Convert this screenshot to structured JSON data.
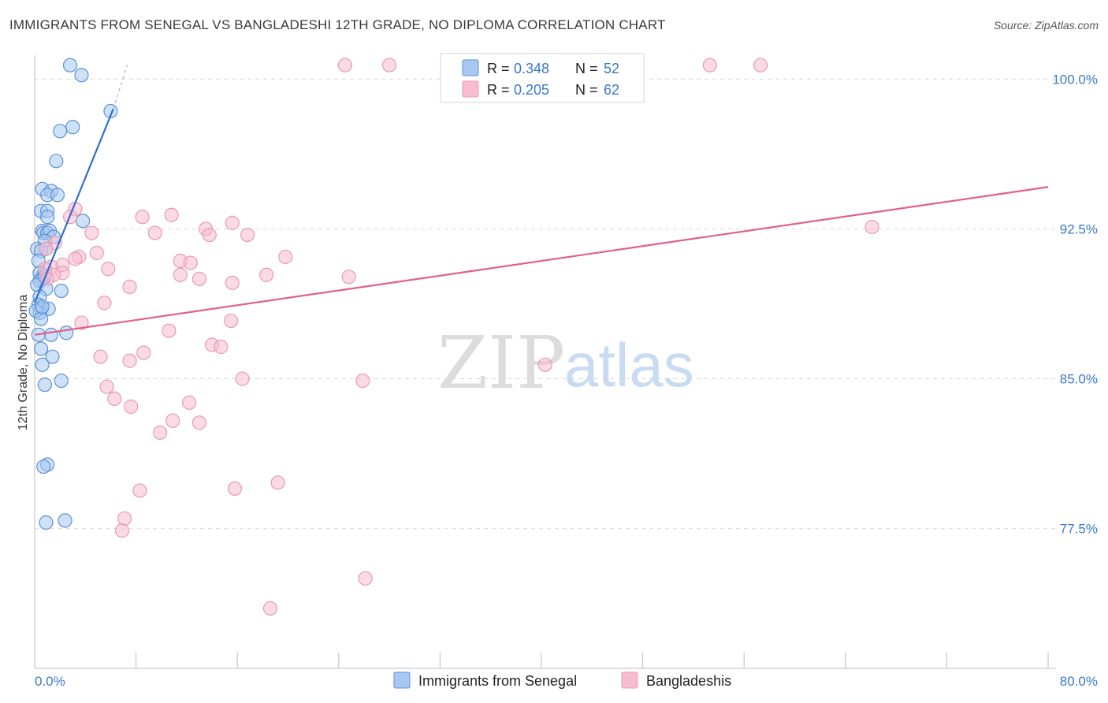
{
  "title": "IMMIGRANTS FROM SENEGAL VS BANGLADESHI 12TH GRADE, NO DIPLOMA CORRELATION CHART",
  "source": "Source: ZipAtlas.com",
  "watermark": {
    "zip": "ZIP",
    "atlas": "atlas"
  },
  "colors": {
    "blue_fill": "#a8c8f0",
    "blue_stroke": "#5b92d8",
    "blue_line": "#2f6fcf",
    "pink_fill": "#f7bcd0",
    "pink_stroke": "#e89ab4",
    "pink_line": "#e0608b",
    "grid": "#d9d9d9",
    "tick_text": "#3b78c9"
  },
  "legend": {
    "series1": {
      "r_label": "R =",
      "r_value": "0.348",
      "n_label": "N =",
      "n_value": "52"
    },
    "series2": {
      "r_label": "R =",
      "r_value": "0.205",
      "n_label": "N =",
      "n_value": "62"
    }
  },
  "chart_data": {
    "type": "scatter",
    "title": "IMMIGRANTS FROM SENEGAL VS BANGLADESHI 12TH GRADE, NO DIPLOMA CORRELATION CHART",
    "xlabel": "",
    "ylabel": "12th Grade, No Diploma",
    "xlim": [
      0,
      80
    ],
    "ylim": [
      70.5,
      101.2
    ],
    "x_tick_labels": [
      "0.0%",
      "80.0%"
    ],
    "y_ticks": [
      100.0,
      92.5,
      85.0,
      77.5
    ],
    "y_tick_labels": [
      "100.0%",
      "92.5%",
      "85.0%",
      "77.5%"
    ],
    "x_minor_ticks": [
      0,
      8,
      16,
      24,
      32,
      40,
      48,
      56,
      64,
      72,
      80
    ],
    "series": [
      {
        "name": "Immigrants from Senegal",
        "color": "blue",
        "trend": {
          "x0": 0.0,
          "y0": 88.8,
          "x1": 6.2,
          "y1": 98.5,
          "dash_x1": 7.3,
          "dash_y1": 100.7
        },
        "points": [
          [
            2.8,
            100.7
          ],
          [
            3.7,
            100.2
          ],
          [
            6.0,
            98.4
          ],
          [
            2.0,
            97.4
          ],
          [
            3.0,
            97.6
          ],
          [
            1.7,
            95.9
          ],
          [
            0.6,
            94.5
          ],
          [
            1.3,
            94.4
          ],
          [
            1.0,
            94.2
          ],
          [
            1.8,
            94.2
          ],
          [
            0.5,
            93.4
          ],
          [
            1.0,
            93.4
          ],
          [
            1.0,
            93.1
          ],
          [
            3.8,
            92.9
          ],
          [
            0.6,
            92.4
          ],
          [
            0.7,
            92.3
          ],
          [
            1.0,
            92.3
          ],
          [
            1.2,
            92.4
          ],
          [
            1.5,
            92.1
          ],
          [
            0.8,
            91.9
          ],
          [
            0.2,
            91.5
          ],
          [
            0.5,
            91.4
          ],
          [
            0.9,
            91.5
          ],
          [
            0.3,
            90.9
          ],
          [
            0.4,
            90.3
          ],
          [
            0.6,
            90.0
          ],
          [
            0.7,
            90.2
          ],
          [
            0.4,
            89.9
          ],
          [
            0.2,
            89.7
          ],
          [
            2.1,
            89.4
          ],
          [
            0.9,
            89.5
          ],
          [
            0.4,
            89.1
          ],
          [
            0.3,
            88.7
          ],
          [
            0.5,
            88.5
          ],
          [
            1.1,
            88.5
          ],
          [
            0.4,
            88.3
          ],
          [
            0.1,
            88.4
          ],
          [
            0.5,
            88.0
          ],
          [
            2.5,
            87.3
          ],
          [
            1.3,
            87.2
          ],
          [
            0.3,
            87.2
          ],
          [
            0.5,
            86.5
          ],
          [
            1.4,
            86.1
          ],
          [
            0.6,
            85.7
          ],
          [
            2.1,
            84.9
          ],
          [
            0.8,
            84.7
          ],
          [
            1.0,
            80.7
          ],
          [
            0.7,
            80.6
          ],
          [
            2.4,
            77.9
          ],
          [
            0.9,
            77.8
          ],
          [
            0.8,
            90.1
          ],
          [
            0.6,
            88.6
          ]
        ]
      },
      {
        "name": "Bangladeshis",
        "color": "pink",
        "trend": {
          "x0": 0.0,
          "y0": 87.2,
          "x1": 80.0,
          "y1": 94.6
        },
        "points": [
          [
            24.5,
            100.7
          ],
          [
            28.0,
            100.7
          ],
          [
            53.3,
            100.7
          ],
          [
            57.3,
            100.7
          ],
          [
            3.2,
            93.5
          ],
          [
            2.8,
            93.1
          ],
          [
            8.5,
            93.1
          ],
          [
            10.8,
            93.2
          ],
          [
            9.5,
            92.3
          ],
          [
            13.5,
            92.5
          ],
          [
            15.6,
            92.8
          ],
          [
            16.8,
            92.2
          ],
          [
            13.8,
            92.2
          ],
          [
            4.5,
            92.3
          ],
          [
            1.6,
            91.8
          ],
          [
            0.9,
            91.5
          ],
          [
            4.9,
            91.3
          ],
          [
            3.5,
            91.1
          ],
          [
            11.5,
            90.9
          ],
          [
            12.3,
            90.8
          ],
          [
            19.8,
            91.1
          ],
          [
            2.2,
            90.7
          ],
          [
            1.3,
            90.6
          ],
          [
            5.8,
            90.5
          ],
          [
            2.2,
            90.3
          ],
          [
            1.5,
            90.2
          ],
          [
            11.5,
            90.2
          ],
          [
            13.0,
            90.0
          ],
          [
            18.3,
            90.2
          ],
          [
            24.8,
            90.1
          ],
          [
            15.6,
            89.8
          ],
          [
            7.5,
            89.6
          ],
          [
            5.5,
            88.8
          ],
          [
            0.8,
            90.5
          ],
          [
            3.7,
            87.8
          ],
          [
            15.5,
            87.9
          ],
          [
            10.6,
            87.4
          ],
          [
            14.0,
            86.7
          ],
          [
            14.7,
            86.6
          ],
          [
            8.6,
            86.3
          ],
          [
            5.2,
            86.1
          ],
          [
            7.5,
            85.9
          ],
          [
            40.3,
            85.7
          ],
          [
            16.4,
            85.0
          ],
          [
            25.9,
            84.9
          ],
          [
            5.7,
            84.6
          ],
          [
            6.3,
            84.0
          ],
          [
            12.2,
            83.8
          ],
          [
            7.6,
            83.6
          ],
          [
            10.9,
            82.9
          ],
          [
            13.0,
            82.8
          ],
          [
            9.9,
            82.3
          ],
          [
            66.1,
            92.6
          ],
          [
            8.3,
            79.4
          ],
          [
            15.8,
            79.5
          ],
          [
            19.2,
            79.8
          ],
          [
            7.1,
            78.0
          ],
          [
            6.9,
            77.4
          ],
          [
            26.1,
            75.0
          ],
          [
            18.6,
            73.5
          ],
          [
            3.2,
            91.0
          ],
          [
            1.0,
            90.0
          ]
        ]
      }
    ]
  },
  "bottom_legend": {
    "series1": "Immigrants from Senegal",
    "series2": "Bangladeshis"
  }
}
